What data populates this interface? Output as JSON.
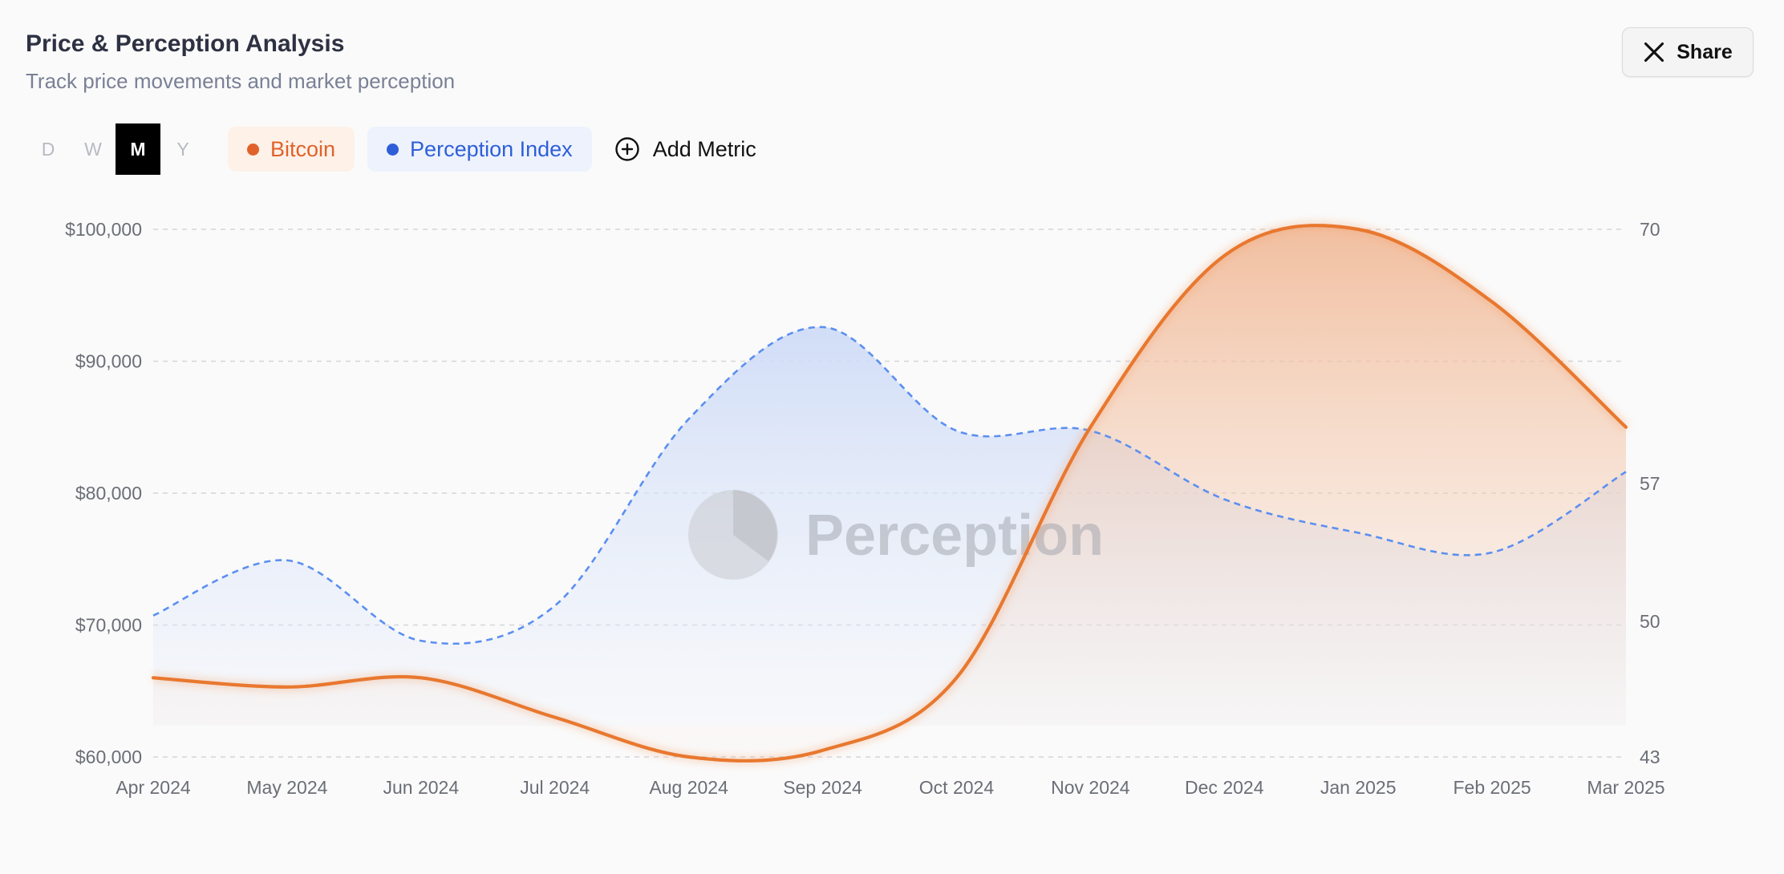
{
  "header": {
    "title": "Price & Perception Analysis",
    "subtitle": "Track price movements and market perception",
    "share_label": "Share"
  },
  "controls": {
    "periods": [
      "D",
      "W",
      "M",
      "Y"
    ],
    "active_period": "M",
    "metrics": [
      {
        "label": "Bitcoin",
        "color": "#e0622a"
      },
      {
        "label": "Perception Index",
        "color": "#2f5fd8"
      }
    ],
    "add_metric_label": "Add Metric"
  },
  "watermark": "Perception",
  "chart_data": {
    "type": "line",
    "x": [
      "Apr 2024",
      "May 2024",
      "Jun 2024",
      "Jul 2024",
      "Aug 2024",
      "Sep 2024",
      "Oct 2024",
      "Nov 2024",
      "Dec 2024",
      "Jan 2025",
      "Feb 2025",
      "Mar 2025"
    ],
    "series": [
      {
        "name": "Bitcoin",
        "axis": "left",
        "color": "#e8782f",
        "style": "solid",
        "values": [
          66000,
          65300,
          66000,
          63000,
          60000,
          60500,
          66000,
          85000,
          98000,
          100000,
          94500,
          85000
        ]
      },
      {
        "name": "Perception Index",
        "axis": "right",
        "color": "#5b8ff0",
        "style": "dashed",
        "values": [
          50.3,
          53.1,
          49.0,
          50.8,
          60.3,
          65.0,
          59.7,
          59.7,
          56.2,
          54.5,
          53.5,
          57.6
        ]
      }
    ],
    "y_left": {
      "ticks": [
        60000,
        70000,
        80000,
        90000,
        100000
      ],
      "tick_labels": [
        "$60,000",
        "$70,000",
        "$80,000",
        "$90,000",
        "$100,000"
      ],
      "range": [
        60000,
        100000
      ]
    },
    "y_right": {
      "ticks": [
        43,
        50,
        57,
        70
      ],
      "tick_labels": [
        "43",
        "50",
        "57",
        "70"
      ],
      "scale_note": "non-linear tick spacing"
    },
    "grid": true,
    "legend": "top-left chips"
  }
}
